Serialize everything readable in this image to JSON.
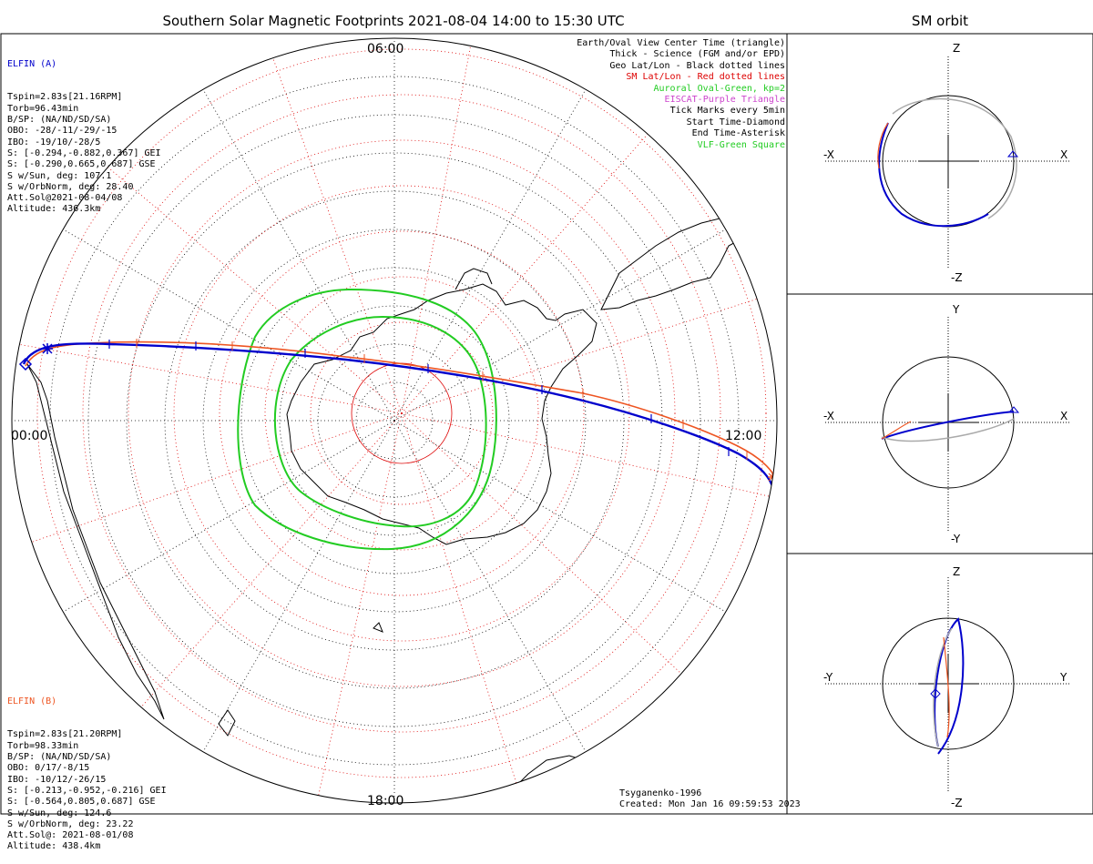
{
  "title": "Southern Solar Magnetic Footprints 2021-08-04 14:00 to 15:30 UTC",
  "orbit_title": "SM orbit",
  "colors": {
    "elfin_a": "#0000cc",
    "elfin_b": "#ee5522",
    "oval": "#22cc22",
    "sm_grid": "#dd0000",
    "geo_grid": "#000000",
    "eiscat": "#cc44cc",
    "vlf": "#22cc22"
  },
  "elfin_a": {
    "name": "ELFIN (A)",
    "lines": [
      "Tspin=2.83s[21.16RPM]",
      "Torb=96.43min",
      "B/SP: (NA/ND/SD/SA)",
      "OBO: -28/-11/-29/-15",
      "IBO: -19/10/-28/5",
      "S: [-0.294,-0.882,0.367] GEI",
      "S: [-0.290,0.665,0.687] GSE",
      "S w/Sun, deg: 107.1",
      "S w/OrbNorm, deg: 28.40",
      "Att.Sol@2021-08-04/08",
      "Altitude: 436.3km"
    ]
  },
  "elfin_b": {
    "name": "ELFIN (B)",
    "lines": [
      "Tspin=2.83s[21.20RPM]",
      "Torb=98.33min",
      "B/SP: (NA/ND/SD/SA)",
      "OBO: 0/17/-8/15",
      "IBO: -10/12/-26/15",
      "S: [-0.213,-0.952,-0.216] GEI",
      "S: [-0.564,0.805,0.687] GSE",
      "S w/Sun, deg: 124.6",
      "S w/OrbNorm, deg: 23.22",
      "Att.Sol@: 2021-08-01/08",
      "Altitude: 438.4km"
    ]
  },
  "legend": [
    {
      "text": "Earth/Oval View Center Time (triangle)",
      "color": "#000000"
    },
    {
      "text": "Thick - Science (FGM and/or EPD)",
      "color": "#000000"
    },
    {
      "text": "Geo Lat/Lon - Black dotted lines",
      "color": "#000000"
    },
    {
      "text": "SM Lat/Lon - Red dotted lines",
      "color": "#dd0000"
    },
    {
      "text": "Auroral Oval-Green, kp=2",
      "color": "#22cc22"
    },
    {
      "text": "EISCAT-Purple Triangle",
      "color": "#cc44cc"
    },
    {
      "text": "Tick Marks every 5min",
      "color": "#000000"
    },
    {
      "text": "Start Time-Diamond",
      "color": "#000000"
    },
    {
      "text": "End Time-Asterisk",
      "color": "#000000"
    },
    {
      "text": "VLF-Green Square",
      "color": "#22cc22"
    }
  ],
  "mlt_labels": {
    "top": "06:00",
    "left": "00:00",
    "right": "12:00",
    "bottom": "18:00"
  },
  "model": "Tsyganenko-1996",
  "created": "Created: Mon Jan 16 09:59:53 2023",
  "orbit_panels": [
    {
      "top": "Z",
      "bottom": "-Z",
      "left": "-X",
      "right": "X"
    },
    {
      "top": "Y",
      "bottom": "-Y",
      "left": "-X",
      "right": "X"
    },
    {
      "top": "Z",
      "bottom": "-Z",
      "left": "-Y",
      "right": "Y"
    }
  ],
  "chart_data": {
    "type": "polar-map",
    "title": "Southern Solar Magnetic Footprints 2021-08-04 14:00 to 15:30 UTC",
    "projection": "southern hemisphere, solar magnetic coordinates",
    "mlt_axis": [
      "00:00",
      "06:00",
      "12:00",
      "18:00"
    ],
    "series": [
      {
        "name": "ELFIN (A)",
        "color": "#0000cc"
      },
      {
        "name": "ELFIN (B)",
        "color": "#ee5522"
      }
    ],
    "auroral_oval_kp": 2
  }
}
